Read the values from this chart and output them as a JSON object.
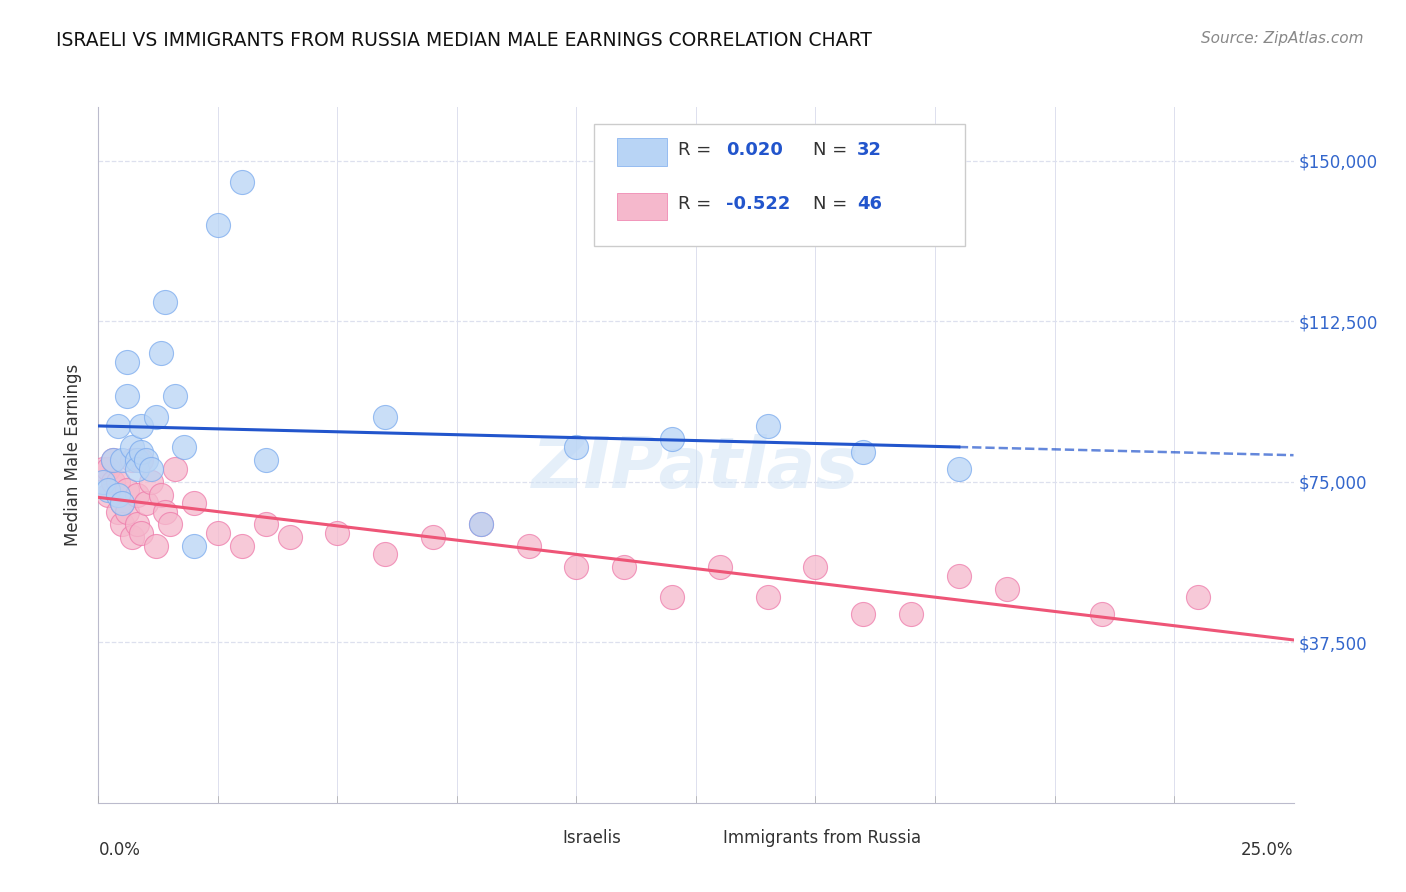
{
  "title": "ISRAELI VS IMMIGRANTS FROM RUSSIA MEDIAN MALE EARNINGS CORRELATION CHART",
  "source": "Source: ZipAtlas.com",
  "ylabel": "Median Male Earnings",
  "xlim": [
    0.0,
    0.25
  ],
  "ylim": [
    0,
    162500
  ],
  "yticks": [
    0,
    37500,
    75000,
    112500,
    150000
  ],
  "ytick_labels": [
    "",
    "$37,500",
    "$75,000",
    "$112,500",
    "$150,000"
  ],
  "watermark": "ZIPatlas",
  "israeli_color": "#b8d4f5",
  "russia_color": "#f5b8cc",
  "israeli_edge_color": "#7aaaee",
  "russia_edge_color": "#ee7aaa",
  "israeli_line_color": "#2255cc",
  "russia_line_color": "#ee5577",
  "background_color": "#ffffff",
  "grid_color": "#dde0ee",
  "israeli_x": [
    0.001,
    0.002,
    0.003,
    0.004,
    0.004,
    0.005,
    0.005,
    0.006,
    0.006,
    0.007,
    0.008,
    0.008,
    0.009,
    0.009,
    0.01,
    0.011,
    0.012,
    0.013,
    0.014,
    0.016,
    0.018,
    0.02,
    0.025,
    0.03,
    0.035,
    0.06,
    0.08,
    0.1,
    0.12,
    0.14,
    0.16,
    0.18
  ],
  "israeli_y": [
    75000,
    73000,
    80000,
    72000,
    88000,
    70000,
    80000,
    103000,
    95000,
    83000,
    80000,
    78000,
    82000,
    88000,
    80000,
    78000,
    90000,
    105000,
    117000,
    95000,
    83000,
    60000,
    135000,
    145000,
    80000,
    90000,
    65000,
    83000,
    85000,
    88000,
    82000,
    78000
  ],
  "russia_x": [
    0.001,
    0.002,
    0.002,
    0.003,
    0.003,
    0.004,
    0.004,
    0.005,
    0.005,
    0.006,
    0.006,
    0.007,
    0.007,
    0.008,
    0.008,
    0.009,
    0.009,
    0.01,
    0.011,
    0.012,
    0.013,
    0.014,
    0.015,
    0.016,
    0.02,
    0.025,
    0.03,
    0.035,
    0.04,
    0.05,
    0.06,
    0.07,
    0.08,
    0.09,
    0.1,
    0.11,
    0.12,
    0.13,
    0.14,
    0.15,
    0.16,
    0.17,
    0.18,
    0.19,
    0.21,
    0.23
  ],
  "russia_y": [
    78000,
    78000,
    72000,
    75000,
    80000,
    68000,
    75000,
    70000,
    65000,
    73000,
    68000,
    62000,
    80000,
    72000,
    65000,
    80000,
    63000,
    70000,
    75000,
    60000,
    72000,
    68000,
    65000,
    78000,
    70000,
    63000,
    60000,
    65000,
    62000,
    63000,
    58000,
    62000,
    65000,
    60000,
    55000,
    55000,
    48000,
    55000,
    48000,
    55000,
    44000,
    44000,
    53000,
    50000,
    44000,
    48000
  ],
  "legend_items": [
    {
      "label": "R =  0.020   N = 32",
      "r_val": "0.020",
      "n_val": "32"
    },
    {
      "label": "R = -0.522   N = 46",
      "r_val": "-0.522",
      "n_val": "46"
    }
  ]
}
